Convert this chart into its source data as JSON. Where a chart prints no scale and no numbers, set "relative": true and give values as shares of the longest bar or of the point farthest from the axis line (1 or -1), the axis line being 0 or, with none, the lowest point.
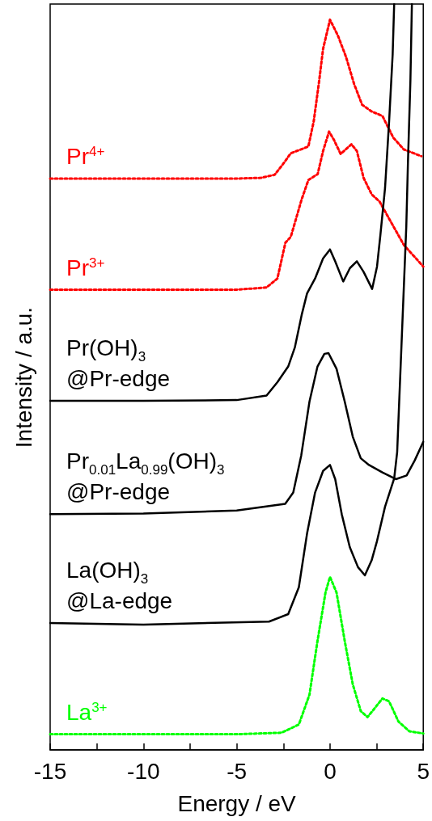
{
  "chart_data": {
    "type": "line",
    "relative": true,
    "xlabel": "Energy / eV",
    "ylabel": "Intensity / a.u.",
    "tick_labels": "x",
    "xlim": [
      -15,
      5
    ],
    "xticks": [
      -15,
      {
        "value": -12.5,
        "label": null
      },
      -10,
      {
        "value": -7.5,
        "label": null
      },
      -5,
      {
        "value": -2.5,
        "label": null
      },
      0,
      {
        "value": 2.5,
        "label": null
      },
      5
    ],
    "series": [
      {
        "name": "Pr$^{4+}$",
        "color": "#ff0000",
        "line_style": "dotted",
        "x": [
          -15,
          -10,
          -5,
          -3.7,
          -2.97,
          -2.53,
          -2.1,
          -1.67,
          -1.16,
          -0.87,
          -0.58,
          -0.37,
          0,
          0.42,
          0.86,
          1.29,
          1.72,
          2.23,
          2.81,
          3.39,
          3.96,
          4.9
        ],
        "values": [
          0.766,
          0.766,
          0.766,
          0.767,
          0.771,
          0.785,
          0.8,
          0.804,
          0.809,
          0.843,
          0.897,
          0.94,
          0.979,
          0.958,
          0.929,
          0.893,
          0.865,
          0.856,
          0.85,
          0.821,
          0.805,
          0.796
        ]
      },
      {
        "name": "Pr$^{3+}$",
        "color": "#ff0000",
        "line_style": "dotted",
        "x": [
          -15,
          -10,
          -5,
          -3.4,
          -2.82,
          -2.39,
          -2.1,
          -1.52,
          -1.16,
          -0.66,
          -0.37,
          -0.05,
          0.21,
          0.57,
          1.15,
          1.44,
          1.8,
          2.23,
          2.66,
          3.24,
          3.96,
          5
        ],
        "values": [
          0.617,
          0.617,
          0.617,
          0.62,
          0.632,
          0.68,
          0.688,
          0.738,
          0.764,
          0.772,
          0.803,
          0.829,
          0.818,
          0.799,
          0.812,
          0.803,
          0.767,
          0.745,
          0.735,
          0.709,
          0.677,
          0.648
        ]
      },
      {
        "name": "Pr(OH)$_{3}$\n@Pr-edge",
        "color": "#000000",
        "line_style": "solid",
        "x": [
          -15,
          -10,
          -5,
          -3.4,
          -2.82,
          -2.24,
          -1.88,
          -1.52,
          -1.23,
          -0.8,
          -0.37,
          0,
          0.28,
          0.71,
          1.07,
          1.44,
          1.8,
          2.26,
          2.52,
          2.7,
          2.95,
          3.17,
          3.36,
          3.44
        ],
        "values": [
          0.468,
          0.468,
          0.469,
          0.475,
          0.493,
          0.514,
          0.54,
          0.583,
          0.612,
          0.632,
          0.659,
          0.671,
          0.655,
          0.628,
          0.646,
          0.655,
          0.641,
          0.618,
          0.648,
          0.69,
          0.753,
          0.843,
          0.933,
          1
        ]
      },
      {
        "name": "Pr$_{0.01}$La$_{0.99}$(OH)$_{3}$\n@Pr-edge",
        "color": "#000000",
        "line_style": "solid",
        "x": [
          -15,
          -10,
          -5,
          -2.4,
          -1.97,
          -1.54,
          -1.1,
          -0.67,
          -0.3,
          -0.08,
          0.35,
          0.79,
          1.22,
          1.65,
          2.09,
          2.81,
          3.53,
          4.11,
          4.54,
          5
        ],
        "values": [
          0.316,
          0.317,
          0.321,
          0.33,
          0.345,
          0.395,
          0.467,
          0.514,
          0.531,
          0.532,
          0.511,
          0.467,
          0.42,
          0.391,
          0.382,
          0.372,
          0.363,
          0.368,
          0.388,
          0.413
        ]
      },
      {
        "name": "La(OH)$_{3}$\n@La-edge",
        "color": "#000000",
        "line_style": "solid",
        "x": [
          -15,
          -10,
          -3.27,
          -2.24,
          -1.67,
          -1.23,
          -0.8,
          -0.37,
          0,
          0.28,
          0.63,
          1.06,
          1.5,
          1.87,
          2.23,
          2.52,
          2.95,
          3.44,
          3.6,
          4.09,
          4.18,
          4.31,
          4.39
        ],
        "values": [
          0.17,
          0.168,
          0.172,
          0.182,
          0.218,
          0.29,
          0.345,
          0.374,
          0.382,
          0.363,
          0.316,
          0.272,
          0.245,
          0.234,
          0.254,
          0.28,
          0.326,
          0.364,
          0.399,
          0.702,
          0.789,
          0.897,
          1
        ]
      },
      {
        "name": "La$^{3+}$",
        "color": "#00ff00",
        "line_style": "dotted",
        "x": [
          -15,
          -5,
          -2.6,
          -1.67,
          -1.1,
          -0.67,
          -0.24,
          0,
          0.35,
          0.79,
          1.22,
          1.65,
          2.01,
          2.37,
          2.81,
          3.17,
          3.67,
          4.25,
          5
        ],
        "values": [
          0.021,
          0.021,
          0.023,
          0.034,
          0.074,
          0.146,
          0.211,
          0.232,
          0.211,
          0.146,
          0.088,
          0.052,
          0.044,
          0.055,
          0.069,
          0.065,
          0.038,
          0.025,
          0.022
        ]
      }
    ]
  }
}
